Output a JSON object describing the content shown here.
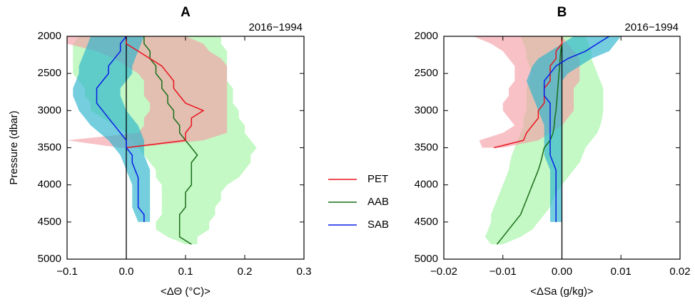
{
  "chart_data": [
    {
      "type": "line",
      "title": "A",
      "annotation": "2016−1994",
      "x_label": "<ΔΘ (°C)>",
      "y_label": "Pressure (dbar)",
      "xlim": [
        -0.1,
        0.3
      ],
      "xticks": [
        {
          "value": -0.1,
          "label": "−0.1"
        },
        {
          "value": 0,
          "label": "0.0"
        },
        0.1,
        0.2,
        0.3
      ],
      "ylim": [
        2000,
        5000
      ],
      "yticks": [
        2000,
        2500,
        3000,
        3500,
        4000,
        4500,
        5000
      ],
      "y_inverted": true,
      "reference_line": 0,
      "legend": "middle",
      "series": [
        {
          "name": "PET",
          "color": "#e8141e",
          "band_color": "#f4a0a8",
          "y": [
            2000,
            2100,
            2200,
            2300,
            2400,
            2500,
            2600,
            2700,
            2800,
            2900,
            3000,
            3100,
            3200,
            3300,
            3400,
            3500
          ],
          "values": [
            0.0,
            0.0,
            0.02,
            0.04,
            0.06,
            0.07,
            0.08,
            0.08,
            0.09,
            0.1,
            0.13,
            0.11,
            0.11,
            0.1,
            0.1,
            0.0
          ],
          "lower": [
            -0.1,
            -0.1,
            -0.05,
            -0.02,
            0.0,
            0.02,
            0.03,
            0.03,
            0.03,
            0.04,
            0.04,
            0.03,
            0.03,
            0.02,
            -0.1,
            -0.01
          ],
          "upper": [
            0.1,
            0.13,
            0.14,
            0.16,
            0.17,
            0.17,
            0.17,
            0.17,
            0.17,
            0.17,
            0.17,
            0.17,
            0.17,
            0.17,
            0.13,
            0.01
          ]
        },
        {
          "name": "AAB",
          "color": "#1a6e1a",
          "band_color": "#a4f4a4",
          "y": [
            2000,
            2100,
            2200,
            2300,
            2400,
            2500,
            2600,
            2700,
            2800,
            2900,
            3000,
            3100,
            3200,
            3300,
            3400,
            3500,
            3600,
            3700,
            3800,
            3900,
            4000,
            4100,
            4200,
            4300,
            4400,
            4500,
            4600,
            4700,
            4800
          ],
          "values": [
            0.03,
            0.03,
            0.04,
            0.04,
            0.05,
            0.05,
            0.06,
            0.06,
            0.07,
            0.07,
            0.08,
            0.08,
            0.09,
            0.09,
            0.1,
            0.11,
            0.12,
            0.11,
            0.11,
            0.11,
            0.11,
            0.1,
            0.1,
            0.1,
            0.09,
            0.09,
            0.09,
            0.09,
            0.11
          ],
          "lower": [
            -0.08,
            -0.09,
            -0.09,
            -0.09,
            -0.09,
            -0.09,
            -0.08,
            -0.07,
            -0.07,
            -0.06,
            -0.06,
            -0.04,
            -0.02,
            0.0,
            0.01,
            0.02,
            0.03,
            0.04,
            0.05,
            0.05,
            0.06,
            0.06,
            0.06,
            0.06,
            0.06,
            0.05,
            0.05,
            0.07,
            0.1
          ],
          "upper": [
            0.16,
            0.16,
            0.17,
            0.17,
            0.17,
            0.17,
            0.17,
            0.18,
            0.18,
            0.18,
            0.19,
            0.19,
            0.2,
            0.2,
            0.21,
            0.22,
            0.21,
            0.21,
            0.2,
            0.19,
            0.17,
            0.16,
            0.16,
            0.15,
            0.15,
            0.14,
            0.14,
            0.12,
            0.12
          ]
        },
        {
          "name": "SAB",
          "color": "#0a1ee6",
          "band_color": "#2ab4cc",
          "y": [
            2000,
            2100,
            2200,
            2300,
            2400,
            2500,
            2600,
            2700,
            2800,
            2900,
            3000,
            3100,
            3200,
            3300,
            3400,
            3500,
            3600,
            3700,
            3800,
            3900,
            4000,
            4100,
            4200,
            4300,
            4400,
            4500
          ],
          "values": [
            0.0,
            -0.01,
            -0.01,
            -0.02,
            -0.03,
            -0.03,
            -0.04,
            -0.05,
            -0.05,
            -0.05,
            -0.04,
            -0.03,
            -0.02,
            -0.01,
            0.0,
            0.0,
            0.01,
            0.01,
            0.015,
            0.02,
            0.02,
            0.02,
            0.02,
            0.02,
            0.03,
            0.03
          ],
          "lower": [
            -0.06,
            -0.065,
            -0.07,
            -0.075,
            -0.08,
            -0.08,
            -0.085,
            -0.09,
            -0.09,
            -0.085,
            -0.08,
            -0.07,
            -0.06,
            -0.045,
            -0.03,
            -0.02,
            -0.01,
            -0.005,
            0.0,
            0.005,
            0.01,
            0.01,
            0.01,
            0.01,
            0.015,
            0.02
          ],
          "upper": [
            0.03,
            0.025,
            0.02,
            0.015,
            0.01,
            0.01,
            0.0,
            -0.01,
            -0.01,
            -0.005,
            0.0,
            0.01,
            0.02,
            0.025,
            0.03,
            0.03,
            0.03,
            0.035,
            0.04,
            0.04,
            0.04,
            0.04,
            0.04,
            0.04,
            0.04,
            0.04
          ]
        }
      ]
    },
    {
      "type": "line",
      "title": "B",
      "annotation": "2016−1994",
      "x_label": "<ΔSa (g/kg)>",
      "xlim": [
        -0.02,
        0.02
      ],
      "xticks": [
        {
          "value": -0.02,
          "label": "−0.02"
        },
        {
          "value": -0.01,
          "label": "−0.01"
        },
        {
          "value": 0,
          "label": "0.00"
        },
        0.01,
        0.02
      ],
      "ylim": [
        2000,
        5000
      ],
      "yticks": [
        2000,
        2500,
        3000,
        3500,
        4000,
        4500,
        5000
      ],
      "y_inverted": true,
      "reference_line": 0,
      "series": [
        {
          "color": "#e8141e",
          "band_color": "#f4a0a8",
          "y": [
            2000,
            2100,
            2200,
            2300,
            2400,
            2500,
            2600,
            2700,
            2800,
            2900,
            3000,
            3100,
            3200,
            3300,
            3400,
            3500
          ],
          "values": [
            0.0,
            0.0,
            -0.001,
            -0.001,
            -0.002,
            -0.002,
            -0.002,
            -0.003,
            -0.003,
            -0.003,
            -0.004,
            -0.004,
            -0.005,
            -0.006,
            -0.0065,
            -0.0115
          ],
          "lower": [
            -0.015,
            -0.012,
            -0.01,
            -0.009,
            -0.008,
            -0.008,
            -0.008,
            -0.009,
            -0.009,
            -0.01,
            -0.01,
            -0.009,
            -0.008,
            -0.01,
            -0.014,
            -0.0135
          ],
          "upper": [
            0.0,
            0.001,
            0.002,
            0.003,
            0.003,
            0.003,
            0.003,
            0.002,
            0.002,
            0.002,
            0.002,
            0.001,
            0.0,
            -0.002,
            -0.004,
            -0.01
          ]
        },
        {
          "color": "#1a6e1a",
          "band_color": "#a4f4a4",
          "y": [
            2000,
            2100,
            2200,
            2300,
            2400,
            2500,
            2600,
            2700,
            2800,
            2900,
            3000,
            3100,
            3200,
            3300,
            3400,
            3500,
            3600,
            3700,
            3800,
            3900,
            4000,
            4100,
            4200,
            4300,
            4400,
            4500,
            4600,
            4700,
            4800
          ],
          "values": [
            0.0,
            0.0,
            -0.0002,
            -0.0003,
            -0.0004,
            -0.0005,
            -0.0006,
            -0.0007,
            -0.0008,
            -0.0009,
            -0.001,
            -0.0012,
            -0.0013,
            -0.0015,
            -0.002,
            -0.003,
            -0.0033,
            -0.0036,
            -0.004,
            -0.0045,
            -0.005,
            -0.0055,
            -0.006,
            -0.0065,
            -0.007,
            -0.008,
            -0.009,
            -0.01,
            -0.011
          ],
          "lower": [
            -0.007,
            -0.0065,
            -0.006,
            -0.006,
            -0.0055,
            -0.005,
            -0.0055,
            -0.006,
            -0.006,
            -0.006,
            -0.006,
            -0.0065,
            -0.0065,
            -0.007,
            -0.0075,
            -0.008,
            -0.0085,
            -0.0088,
            -0.009,
            -0.0095,
            -0.01,
            -0.0105,
            -0.011,
            -0.0115,
            -0.012,
            -0.012,
            -0.0125,
            -0.013,
            -0.012
          ],
          "upper": [
            0.004,
            0.0045,
            0.005,
            0.005,
            0.0055,
            0.006,
            0.0065,
            0.007,
            0.007,
            0.007,
            0.007,
            0.0068,
            0.0065,
            0.006,
            0.005,
            0.004,
            0.0035,
            0.003,
            0.002,
            0.001,
            0.0,
            -0.001,
            -0.0015,
            -0.002,
            -0.003,
            -0.004,
            -0.005,
            -0.007,
            -0.01
          ]
        },
        {
          "color": "#0a1ee6",
          "band_color": "#2ab4cc",
          "y": [
            2000,
            2100,
            2200,
            2300,
            2400,
            2500,
            2600,
            2700,
            2800,
            2900,
            3000,
            3100,
            3200,
            3300,
            3400,
            3500,
            3600,
            3700,
            3800,
            3900,
            4000,
            4100,
            4200,
            4300,
            4400,
            4500
          ],
          "values": [
            0.008,
            0.006,
            0.004,
            0.001,
            -0.001,
            -0.002,
            -0.003,
            -0.003,
            -0.003,
            -0.002,
            -0.002,
            -0.002,
            -0.002,
            -0.002,
            -0.002,
            -0.002,
            -0.002,
            -0.0015,
            -0.001,
            -0.001,
            -0.001,
            -0.001,
            -0.001,
            -0.001,
            -0.001,
            -0.001
          ],
          "lower": [
            0.002,
            0.0,
            -0.002,
            -0.004,
            -0.005,
            -0.0055,
            -0.006,
            -0.0055,
            -0.005,
            -0.0045,
            -0.004,
            -0.0035,
            -0.003,
            -0.003,
            -0.003,
            -0.003,
            -0.003,
            -0.0025,
            -0.002,
            -0.002,
            -0.002,
            -0.002,
            -0.002,
            -0.002,
            -0.002,
            -0.002
          ],
          "upper": [
            0.01,
            0.009,
            0.008,
            0.005,
            0.003,
            0.001,
            0.0,
            0.0,
            0.0,
            0.0,
            0.0,
            0.0,
            0.0,
            0.0,
            0.0,
            0.0,
            0.0,
            0.0,
            0.0,
            0.0,
            0.0,
            0.0,
            0.0,
            0.0,
            0.0,
            0.0
          ]
        }
      ]
    }
  ]
}
